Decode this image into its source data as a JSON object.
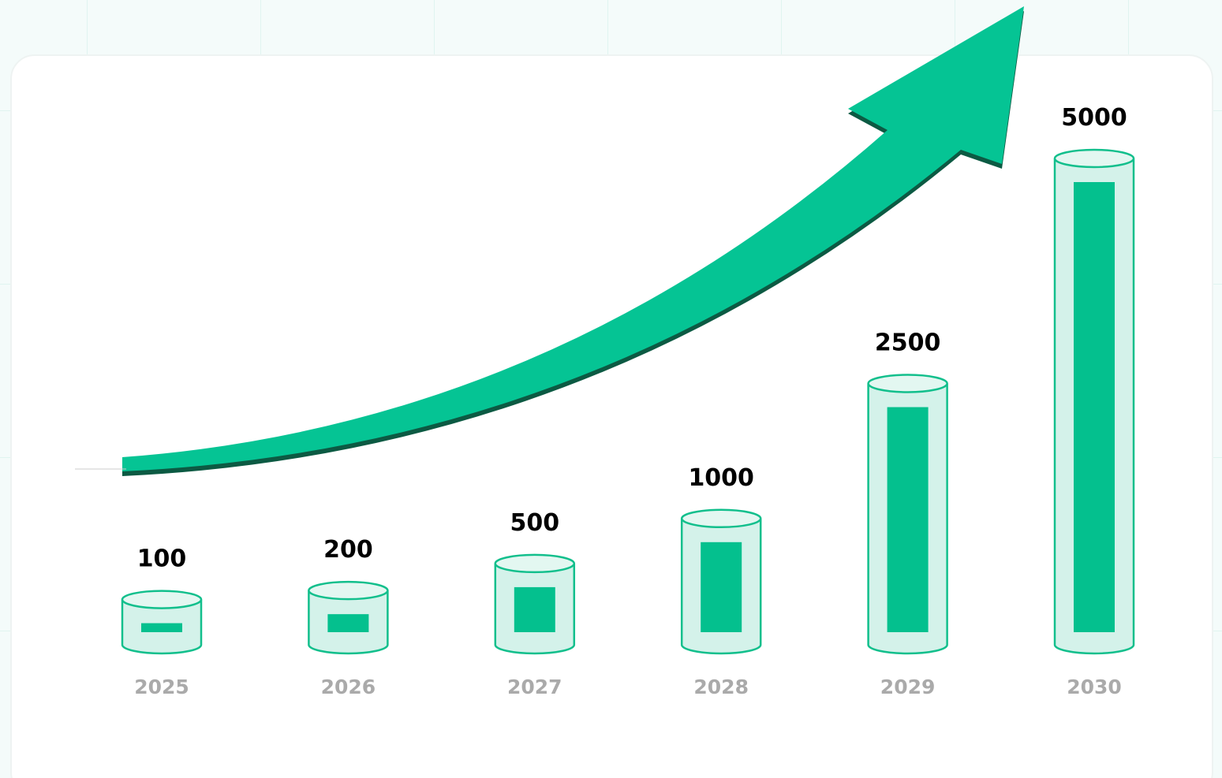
{
  "chart_data": {
    "type": "bar",
    "categories": [
      "2025",
      "2026",
      "2027",
      "2028",
      "2029",
      "2030"
    ],
    "values": [
      100,
      200,
      500,
      1000,
      2500,
      5000
    ],
    "color": "#04c08e"
  }
}
